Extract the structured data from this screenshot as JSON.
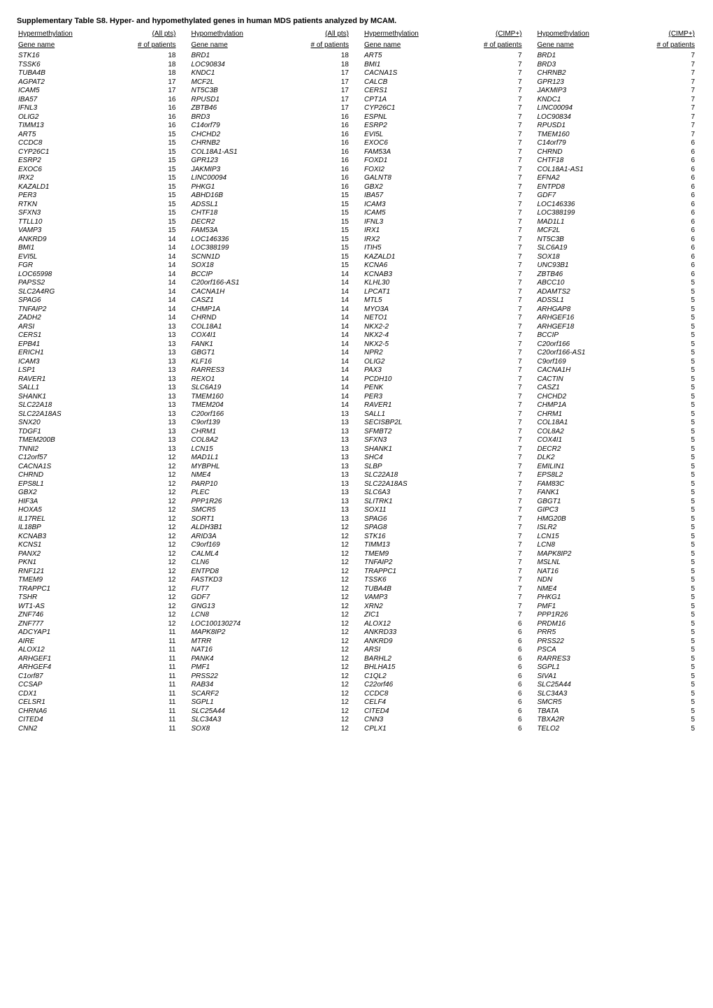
{
  "title": "Supplementary Table S8. Hyper- and hypomethylated genes in human MDS patients analyzed by MCAM.",
  "columns": [
    {
      "header1": "Hypermethylation",
      "header2_gene": "Gene name",
      "header2_num": "# of patients",
      "suffix": "(All pts)",
      "rows": [
        [
          "STK16",
          18
        ],
        [
          "TSSK6",
          18
        ],
        [
          "TUBA4B",
          18
        ],
        [
          "AGPAT2",
          17
        ],
        [
          "ICAM5",
          17
        ],
        [
          "IBA57",
          16
        ],
        [
          "IFNL3",
          16
        ],
        [
          "OLIG2",
          16
        ],
        [
          "TIMM13",
          16
        ],
        [
          "ART5",
          15
        ],
        [
          "CCDC8",
          15
        ],
        [
          "CYP26C1",
          15
        ],
        [
          "ESRP2",
          15
        ],
        [
          "EXOC6",
          15
        ],
        [
          "IRX2",
          15
        ],
        [
          "KAZALD1",
          15
        ],
        [
          "PER3",
          15
        ],
        [
          "RTKN",
          15
        ],
        [
          "SFXN3",
          15
        ],
        [
          "TTLL10",
          15
        ],
        [
          "VAMP3",
          15
        ],
        [
          "ANKRD9",
          14
        ],
        [
          "BMI1",
          14
        ],
        [
          "EVI5L",
          14
        ],
        [
          "FGR",
          14
        ],
        [
          "LOC65998",
          14
        ],
        [
          "PAPSS2",
          14
        ],
        [
          "SLC2A4RG",
          14
        ],
        [
          "SPAG6",
          14
        ],
        [
          "TNFAIP2",
          14
        ],
        [
          "ZADH2",
          14
        ],
        [
          "ARSI",
          13
        ],
        [
          "CERS1",
          13
        ],
        [
          "EPB41",
          13
        ],
        [
          "ERICH1",
          13
        ],
        [
          "ICAM3",
          13
        ],
        [
          "LSP1",
          13
        ],
        [
          "RAVER1",
          13
        ],
        [
          "SALL1",
          13
        ],
        [
          "SHANK1",
          13
        ],
        [
          "SLC22A18",
          13
        ],
        [
          "SLC22A18AS",
          13
        ],
        [
          "SNX20",
          13
        ],
        [
          "TDGF1",
          13
        ],
        [
          "TMEM200B",
          13
        ],
        [
          "TNNI2",
          13
        ],
        [
          "C12orf57",
          12
        ],
        [
          "CACNA1S",
          12
        ],
        [
          "CHRND",
          12
        ],
        [
          "EPS8L1",
          12
        ],
        [
          "GBX2",
          12
        ],
        [
          "HIF3A",
          12
        ],
        [
          "HOXA5",
          12
        ],
        [
          "IL17REL",
          12
        ],
        [
          "IL18BP",
          12
        ],
        [
          "KCNAB3",
          12
        ],
        [
          "KCNS1",
          12
        ],
        [
          "PANX2",
          12
        ],
        [
          "PKN1",
          12
        ],
        [
          "RNF121",
          12
        ],
        [
          "TMEM9",
          12
        ],
        [
          "TRAPPC1",
          12
        ],
        [
          "TSHR",
          12
        ],
        [
          "WT1-AS",
          12
        ],
        [
          "ZNF746",
          12
        ],
        [
          "ZNF777",
          12
        ],
        [
          "ADCYAP1",
          11
        ],
        [
          "AIRE",
          11
        ],
        [
          "ALOX12",
          11
        ],
        [
          "ARHGEF1",
          11
        ],
        [
          "ARHGEF4",
          11
        ],
        [
          "C1orf87",
          11
        ],
        [
          "CCSAP",
          11
        ],
        [
          "CDX1",
          11
        ],
        [
          "CELSR1",
          11
        ],
        [
          "CHRNA6",
          11
        ],
        [
          "CITED4",
          11
        ],
        [
          "CNN2",
          11
        ]
      ]
    },
    {
      "header1": "Hypomethylation",
      "header2_gene": "Gene name",
      "header2_num": "# of patients",
      "suffix": "(All pts)",
      "rows": [
        [
          "BRD1",
          18
        ],
        [
          "LOC90834",
          18
        ],
        [
          "KNDC1",
          17
        ],
        [
          "MCF2L",
          17
        ],
        [
          "NT5C3B",
          17
        ],
        [
          "RPUSD1",
          17
        ],
        [
          "ZBTB46",
          17
        ],
        [
          "BRD3",
          16
        ],
        [
          "C14orf79",
          16
        ],
        [
          "CHCHD2",
          16
        ],
        [
          "CHRNB2",
          16
        ],
        [
          "COL18A1-AS1",
          16
        ],
        [
          "GPR123",
          16
        ],
        [
          "JAKMIP3",
          16
        ],
        [
          "LINC00094",
          16
        ],
        [
          "PHKG1",
          16
        ],
        [
          "ABHD16B",
          15
        ],
        [
          "ADSSL1",
          15
        ],
        [
          "CHTF18",
          15
        ],
        [
          "DECR2",
          15
        ],
        [
          "FAM53A",
          15
        ],
        [
          "LOC146336",
          15
        ],
        [
          "LOC388199",
          15
        ],
        [
          "SCNN1D",
          15
        ],
        [
          "SOX18",
          15
        ],
        [
          "BCCIP",
          14
        ],
        [
          "C20orf166-AS1",
          14
        ],
        [
          "CACNA1H",
          14
        ],
        [
          "CASZ1",
          14
        ],
        [
          "CHMP1A",
          14
        ],
        [
          "CHRND",
          14
        ],
        [
          "COL18A1",
          14
        ],
        [
          "COX4I1",
          14
        ],
        [
          "FANK1",
          14
        ],
        [
          "GBGT1",
          14
        ],
        [
          "KLF16",
          14
        ],
        [
          "RARRES3",
          14
        ],
        [
          "REXO1",
          14
        ],
        [
          "SLC6A19",
          14
        ],
        [
          "TMEM160",
          14
        ],
        [
          "TMEM204",
          14
        ],
        [
          "C20orf166",
          13
        ],
        [
          "C9orf139",
          13
        ],
        [
          "CHRM1",
          13
        ],
        [
          "COL8A2",
          13
        ],
        [
          "LCN15",
          13
        ],
        [
          "MAD1L1",
          13
        ],
        [
          "MYBPHL",
          13
        ],
        [
          "NME4",
          13
        ],
        [
          "PARP10",
          13
        ],
        [
          "PLEC",
          13
        ],
        [
          "PPP1R26",
          13
        ],
        [
          "SMCR5",
          13
        ],
        [
          "SORT1",
          13
        ],
        [
          "ALDH3B1",
          12
        ],
        [
          "ARID3A",
          12
        ],
        [
          "C9orf169",
          12
        ],
        [
          "CALML4",
          12
        ],
        [
          "CLN6",
          12
        ],
        [
          "ENTPD8",
          12
        ],
        [
          "FASTKD3",
          12
        ],
        [
          "FUT7",
          12
        ],
        [
          "GDF7",
          12
        ],
        [
          "GNG13",
          12
        ],
        [
          "LCN8",
          12
        ],
        [
          "LOC100130274",
          12
        ],
        [
          "MAPK8IP2",
          12
        ],
        [
          "MTRR",
          12
        ],
        [
          "NAT16",
          12
        ],
        [
          "PANK4",
          12
        ],
        [
          "PMF1",
          12
        ],
        [
          "PRSS22",
          12
        ],
        [
          "RAB34",
          12
        ],
        [
          "SCARF2",
          12
        ],
        [
          "SGPL1",
          12
        ],
        [
          "SLC25A44",
          12
        ],
        [
          "SLC34A3",
          12
        ],
        [
          "SOX8",
          12
        ]
      ]
    },
    {
      "header1": "Hypermethylation",
      "header2_gene": "Gene name",
      "header2_num": "# of patients",
      "suffix": "(CIMP+)",
      "rows": [
        [
          "ART5",
          7
        ],
        [
          "BMI1",
          7
        ],
        [
          "CACNA1S",
          7
        ],
        [
          "CALCB",
          7
        ],
        [
          "CERS1",
          7
        ],
        [
          "CPT1A",
          7
        ],
        [
          "CYP26C1",
          7
        ],
        [
          "ESPNL",
          7
        ],
        [
          "ESRP2",
          7
        ],
        [
          "EVI5L",
          7
        ],
        [
          "EXOC6",
          7
        ],
        [
          "FAM53A",
          7
        ],
        [
          "FOXD1",
          7
        ],
        [
          "FOXI2",
          7
        ],
        [
          "GALNT8",
          7
        ],
        [
          "GBX2",
          7
        ],
        [
          "IBA57",
          7
        ],
        [
          "ICAM3",
          7
        ],
        [
          "ICAM5",
          7
        ],
        [
          "IFNL3",
          7
        ],
        [
          "IRX1",
          7
        ],
        [
          "IRX2",
          7
        ],
        [
          "ITIH5",
          7
        ],
        [
          "KAZALD1",
          7
        ],
        [
          "KCNA6",
          7
        ],
        [
          "KCNAB3",
          7
        ],
        [
          "KLHL30",
          7
        ],
        [
          "LPCAT1",
          7
        ],
        [
          "MTL5",
          7
        ],
        [
          "MYO3A",
          7
        ],
        [
          "NETO1",
          7
        ],
        [
          "NKX2-2",
          7
        ],
        [
          "NKX2-4",
          7
        ],
        [
          "NKX2-5",
          7
        ],
        [
          "NPR2",
          7
        ],
        [
          "OLIG2",
          7
        ],
        [
          "PAX3",
          7
        ],
        [
          "PCDH10",
          7
        ],
        [
          "PENK",
          7
        ],
        [
          "PER3",
          7
        ],
        [
          "RAVER1",
          7
        ],
        [
          "SALL1",
          7
        ],
        [
          "SECISBP2L",
          7
        ],
        [
          "SFMBT2",
          7
        ],
        [
          "SFXN3",
          7
        ],
        [
          "SHANK1",
          7
        ],
        [
          "SHC4",
          7
        ],
        [
          "SLBP",
          7
        ],
        [
          "SLC22A18",
          7
        ],
        [
          "SLC22A18AS",
          7
        ],
        [
          "SLC6A3",
          7
        ],
        [
          "SLITRK1",
          7
        ],
        [
          "SOX11",
          7
        ],
        [
          "SPAG6",
          7
        ],
        [
          "SPAG8",
          7
        ],
        [
          "STK16",
          7
        ],
        [
          "TIMM13",
          7
        ],
        [
          "TMEM9",
          7
        ],
        [
          "TNFAIP2",
          7
        ],
        [
          "TRAPPC1",
          7
        ],
        [
          "TSSK6",
          7
        ],
        [
          "TUBA4B",
          7
        ],
        [
          "VAMP3",
          7
        ],
        [
          "XRN2",
          7
        ],
        [
          "ZIC1",
          7
        ],
        [
          "ALOX12",
          6
        ],
        [
          "ANKRD33",
          6
        ],
        [
          "ANKRD9",
          6
        ],
        [
          "ARSI",
          6
        ],
        [
          "BARHL2",
          6
        ],
        [
          "BHLHA15",
          6
        ],
        [
          "C1QL2",
          6
        ],
        [
          "C22orf46",
          6
        ],
        [
          "CCDC8",
          6
        ],
        [
          "CELF4",
          6
        ],
        [
          "CITED4",
          6
        ],
        [
          "CNN3",
          6
        ],
        [
          "CPLX1",
          6
        ]
      ]
    },
    {
      "header1": "Hypomethylation",
      "header2_gene": "Gene name",
      "header2_num": "# of patients",
      "suffix": "(CIMP+)",
      "rows": [
        [
          "BRD1",
          7
        ],
        [
          "BRD3",
          7
        ],
        [
          "CHRNB2",
          7
        ],
        [
          "GPR123",
          7
        ],
        [
          "JAKMIP3",
          7
        ],
        [
          "KNDC1",
          7
        ],
        [
          "LINC00094",
          7
        ],
        [
          "LOC90834",
          7
        ],
        [
          "RPUSD1",
          7
        ],
        [
          "TMEM160",
          7
        ],
        [
          "C14orf79",
          6
        ],
        [
          "CHRND",
          6
        ],
        [
          "CHTF18",
          6
        ],
        [
          "COL18A1-AS1",
          6
        ],
        [
          "EFNA2",
          6
        ],
        [
          "ENTPD8",
          6
        ],
        [
          "GDF7",
          6
        ],
        [
          "LOC146336",
          6
        ],
        [
          "LOC388199",
          6
        ],
        [
          "MAD1L1",
          6
        ],
        [
          "MCF2L",
          6
        ],
        [
          "NT5C3B",
          6
        ],
        [
          "SLC6A19",
          6
        ],
        [
          "SOX18",
          6
        ],
        [
          "UNC93B1",
          6
        ],
        [
          "ZBTB46",
          6
        ],
        [
          "ABCC10",
          5
        ],
        [
          "ADAMTS2",
          5
        ],
        [
          "ADSSL1",
          5
        ],
        [
          "ARHGAP8",
          5
        ],
        [
          "ARHGEF16",
          5
        ],
        [
          "ARHGEF18",
          5
        ],
        [
          "BCCIP",
          5
        ],
        [
          "C20orf166",
          5
        ],
        [
          "C20orf166-AS1",
          5
        ],
        [
          "C9orf169",
          5
        ],
        [
          "CACNA1H",
          5
        ],
        [
          "CACTIN",
          5
        ],
        [
          "CASZ1",
          5
        ],
        [
          "CHCHD2",
          5
        ],
        [
          "CHMP1A",
          5
        ],
        [
          "CHRM1",
          5
        ],
        [
          "COL18A1",
          5
        ],
        [
          "COL8A2",
          5
        ],
        [
          "COX4I1",
          5
        ],
        [
          "DECR2",
          5
        ],
        [
          "DLK2",
          5
        ],
        [
          "EMILIN1",
          5
        ],
        [
          "EPS8L2",
          5
        ],
        [
          "FAM83C",
          5
        ],
        [
          "FANK1",
          5
        ],
        [
          "GBGT1",
          5
        ],
        [
          "GIPC3",
          5
        ],
        [
          "HMG20B",
          5
        ],
        [
          "ISLR2",
          5
        ],
        [
          "LCN15",
          5
        ],
        [
          "LCN8",
          5
        ],
        [
          "MAPK8IP2",
          5
        ],
        [
          "MSLNL",
          5
        ],
        [
          "NAT16",
          5
        ],
        [
          "NDN",
          5
        ],
        [
          "NME4",
          5
        ],
        [
          "PHKG1",
          5
        ],
        [
          "PMF1",
          5
        ],
        [
          "PPP1R26",
          5
        ],
        [
          "PRDM16",
          5
        ],
        [
          "PRR5",
          5
        ],
        [
          "PRSS22",
          5
        ],
        [
          "PSCA",
          5
        ],
        [
          "RARRES3",
          5
        ],
        [
          "SGPL1",
          5
        ],
        [
          "SIVA1",
          5
        ],
        [
          "SLC25A44",
          5
        ],
        [
          "SLC34A3",
          5
        ],
        [
          "SMCR5",
          5
        ],
        [
          "TBATA",
          5
        ],
        [
          "TBXA2R",
          5
        ],
        [
          "TELO2",
          5
        ]
      ]
    }
  ]
}
